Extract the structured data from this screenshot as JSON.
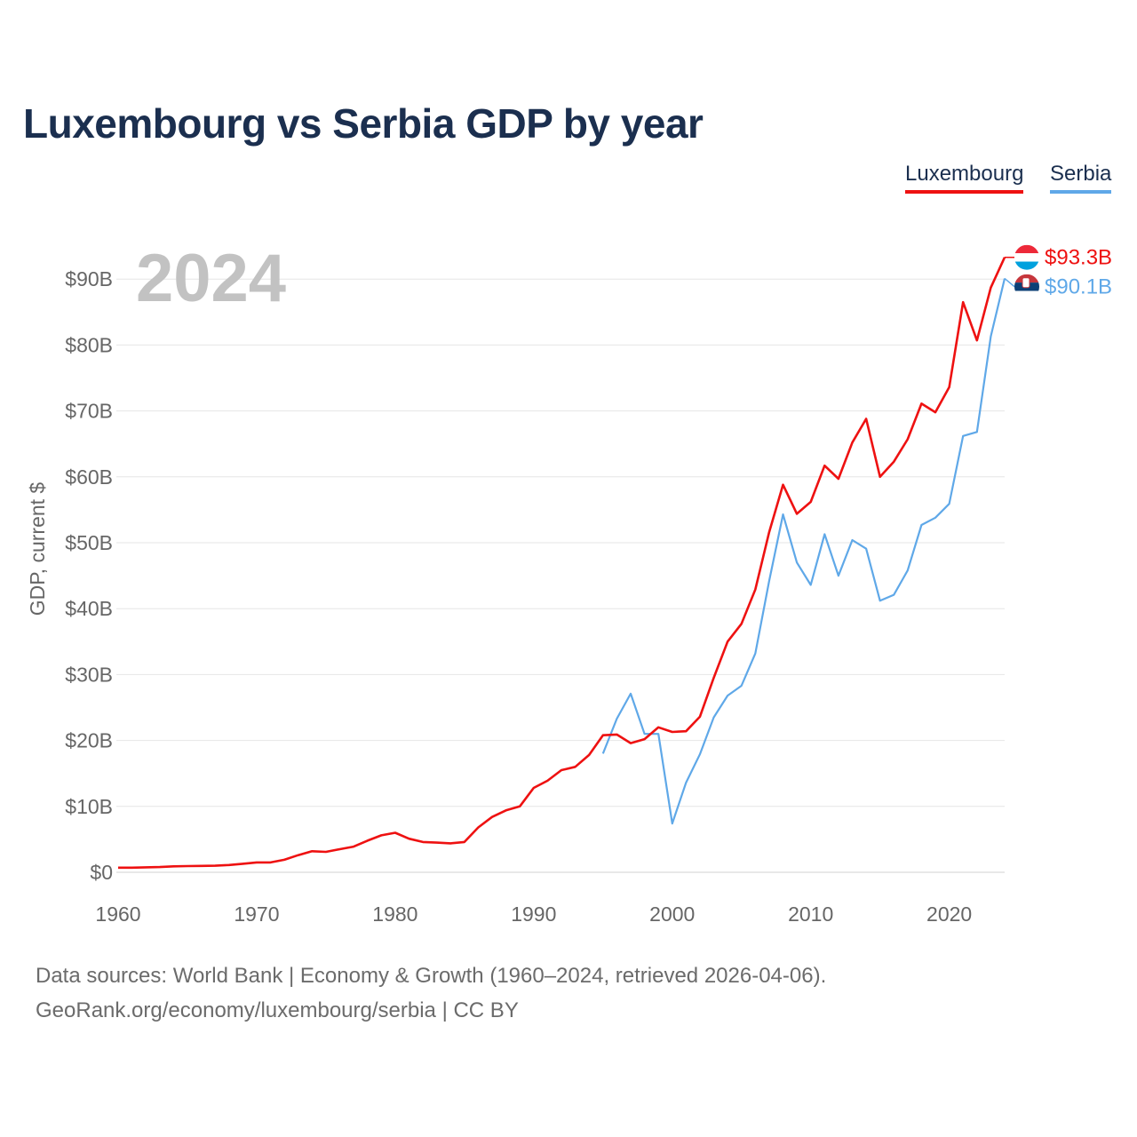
{
  "title": "Luxembourg vs Serbia GDP by year",
  "year_label": "2024",
  "legend": [
    {
      "name": "Luxembourg",
      "color": "#ee1111"
    },
    {
      "name": "Serbia",
      "color": "#5fa8e8"
    }
  ],
  "end_labels": [
    "$93.3B",
    "$90.1B"
  ],
  "footer": {
    "source": "Data sources: World Bank | Economy & Growth (1960–2024, retrieved 2026-04-06).",
    "site": "GeoRank.org/economy/luxembourg/serbia | CC BY"
  },
  "chart_data": {
    "type": "line",
    "title": "Luxembourg vs Serbia GDP by year",
    "xlabel": "",
    "ylabel": "GDP, current $",
    "xlim": [
      1960,
      2024
    ],
    "ylim": [
      0,
      95
    ],
    "y_unit": "billions of current US$",
    "x_ticks": [
      1960,
      1970,
      1980,
      1990,
      2000,
      2010,
      2020
    ],
    "x_tick_labels": [
      "1960",
      "1970",
      "1980",
      "1990",
      "2000",
      "2010",
      "2020"
    ],
    "y_ticks": [
      0,
      10,
      20,
      30,
      40,
      50,
      60,
      70,
      80,
      90
    ],
    "y_tick_labels": [
      "$0",
      "$10B",
      "$20B",
      "$30B",
      "$40B",
      "$50B",
      "$60B",
      "$70B",
      "$80B",
      "$90B"
    ],
    "grid": true,
    "legend_position": "top-right",
    "series": [
      {
        "name": "Luxembourg",
        "color": "#ee1111",
        "start_year": 1960,
        "values": [
          0.7,
          0.7,
          0.75,
          0.8,
          0.9,
          0.95,
          0.97,
          1.0,
          1.1,
          1.3,
          1.5,
          1.5,
          1.9,
          2.6,
          3.2,
          3.1,
          3.5,
          3.9,
          4.8,
          5.6,
          6.0,
          5.1,
          4.6,
          4.5,
          4.4,
          4.6,
          6.8,
          8.4,
          9.4,
          10.0,
          12.8,
          13.9,
          15.5,
          16.0,
          17.8,
          20.8,
          20.9,
          19.6,
          20.2,
          22.0,
          21.3,
          21.4,
          23.6,
          29.5,
          35.0,
          37.7,
          42.9,
          51.6,
          58.8,
          54.4,
          56.2,
          61.7,
          59.7,
          65.2,
          68.8,
          60.0,
          62.3,
          65.7,
          71.1,
          69.8,
          73.6,
          86.5,
          80.7,
          88.7,
          93.3
        ]
      },
      {
        "name": "Serbia",
        "color": "#5fa8e8",
        "start_year": 1995,
        "values": [
          18.0,
          23.3,
          27.1,
          21.0,
          21.0,
          7.4,
          13.6,
          17.9,
          23.5,
          26.8,
          28.3,
          33.2,
          44.2,
          54.3,
          47.0,
          43.6,
          51.3,
          45.0,
          50.4,
          49.1,
          41.2,
          42.1,
          45.8,
          52.7,
          53.8,
          55.9,
          66.2,
          66.8,
          81.3,
          90.1
        ]
      }
    ]
  }
}
